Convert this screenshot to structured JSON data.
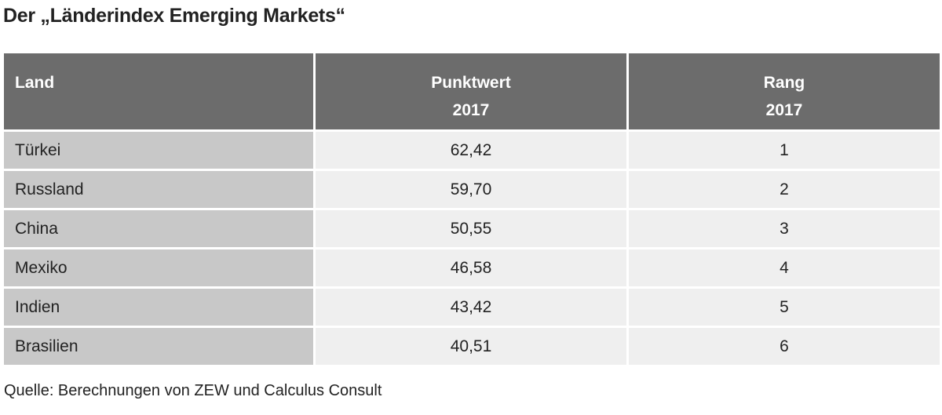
{
  "title": "Der „Länderindex Emerging Markets“",
  "table": {
    "header": [
      [
        "Land"
      ],
      [
        "Punktwert",
        "2017"
      ],
      [
        "Rang",
        "2017"
      ]
    ],
    "rows": [
      [
        "Türkei",
        "62,42",
        "1"
      ],
      [
        "Russland",
        "59,70",
        "2"
      ],
      [
        "China",
        "50,55",
        "3"
      ],
      [
        "Mexiko",
        "46,58",
        "4"
      ],
      [
        "Indien",
        "43,42",
        "5"
      ],
      [
        "Brasilien",
        "40,51",
        "6"
      ]
    ]
  },
  "source": "Quelle: Berechnungen von ZEW und Calculus Consult"
}
